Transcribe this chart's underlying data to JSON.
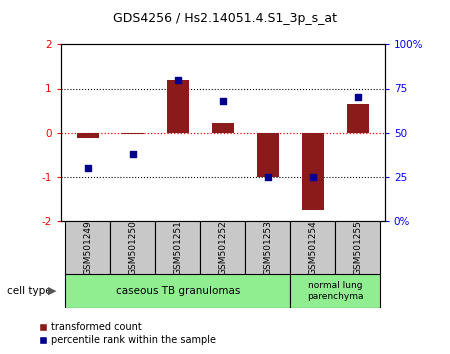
{
  "title": "GDS4256 / Hs2.14051.4.S1_3p_s_at",
  "samples": [
    "GSM501249",
    "GSM501250",
    "GSM501251",
    "GSM501252",
    "GSM501253",
    "GSM501254",
    "GSM501255"
  ],
  "red_values": [
    -0.12,
    -0.02,
    1.2,
    0.22,
    -1.0,
    -1.75,
    0.65
  ],
  "blue_values": [
    30,
    38,
    80,
    68,
    25,
    25,
    70
  ],
  "red_color": "#8B1A1A",
  "blue_color": "#00008B",
  "ylim_left": [
    -2,
    2
  ],
  "ylim_right": [
    0,
    100
  ],
  "yticks_left": [
    -2,
    -1,
    0,
    1,
    2
  ],
  "yticks_right": [
    0,
    25,
    50,
    75,
    100
  ],
  "legend_red": "transformed count",
  "legend_blue": "percentile rank within the sample",
  "cell_type_label": "cell type",
  "group1_label": "caseous TB granulomas",
  "group2_label": "normal lung\nparenchyma",
  "group1_color": "#90EE90",
  "group2_color": "#90EE90",
  "sample_box_color": "#C8C8C8",
  "bar_width": 0.5
}
